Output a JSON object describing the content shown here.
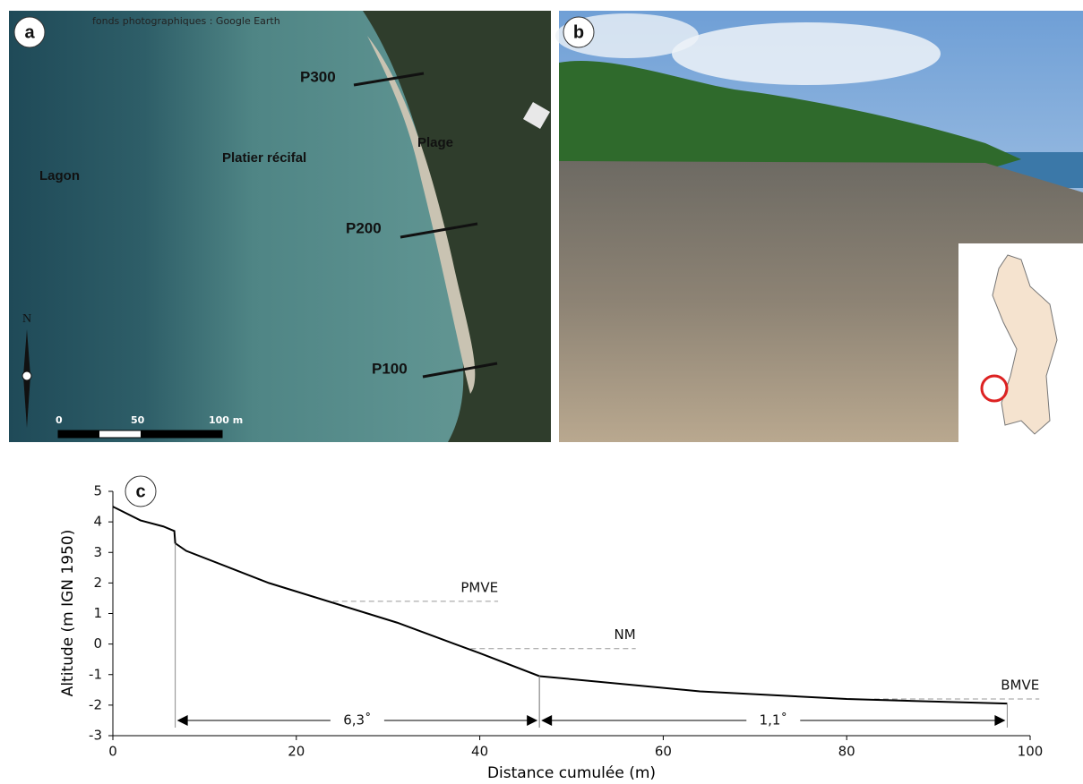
{
  "panel_a": {
    "label": "a",
    "credit": "fonds photographiques : Google Earth",
    "annotations": [
      "P300",
      "Plage",
      "Platier récifal",
      "Lagon",
      "P200",
      "P100"
    ],
    "north": "N",
    "scale": [
      "0",
      "50",
      "100 m"
    ]
  },
  "panel_b": {
    "label": "b"
  },
  "chart_data": {
    "type": "line",
    "label": "c",
    "xlabel": "Distance cumulée (m)",
    "ylabel": "Altitude (m IGN 1950)",
    "x": [
      0,
      3,
      5.5,
      6.7,
      6.8,
      8,
      17,
      31,
      40,
      46.5,
      64,
      80,
      97.5
    ],
    "values": [
      4.5,
      4.05,
      3.85,
      3.7,
      3.3,
      3.05,
      2.0,
      0.7,
      -0.3,
      -1.05,
      -1.55,
      -1.8,
      -1.95
    ],
    "color": "#000000",
    "xlim": [
      0,
      100
    ],
    "ylim": [
      -3,
      5
    ],
    "xticks": [
      0,
      20,
      40,
      60,
      80,
      100
    ],
    "yticks": [
      -3,
      -2,
      -1,
      0,
      1,
      2,
      3,
      4,
      5
    ],
    "levels": [
      {
        "name": "PMVE",
        "y": 1.4,
        "x": [
          24,
          42
        ]
      },
      {
        "name": "NM",
        "y": -0.15,
        "x": [
          39,
          57
        ]
      },
      {
        "name": "BMVE",
        "y": -1.8,
        "x": [
          83,
          101
        ]
      }
    ],
    "slopes": [
      {
        "label": "6,3˚",
        "x": [
          6.8,
          46.5
        ],
        "y": -2.5
      },
      {
        "label": "1,1˚",
        "x": [
          46.5,
          97.5
        ],
        "y": -2.5
      }
    ]
  }
}
